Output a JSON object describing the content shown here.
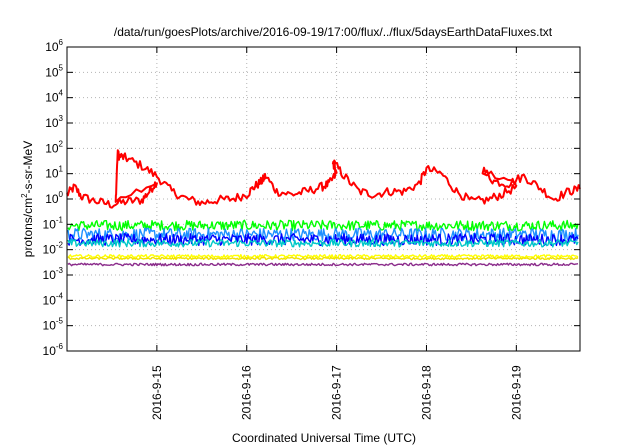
{
  "chart_data": {
    "type": "line",
    "title": "/data/run/goesPlots/archive/2016-09-19/17:00/flux/../flux/5daysEarthDataFluxes.txt",
    "xlabel": "Coordinated Universal Time (UTC)",
    "ylabel": {
      "pre": "protons/cm",
      "sup": "2",
      "post": "-s-sr-MeV"
    },
    "y_scale": "log",
    "ylim_exponents": [
      -6,
      6
    ],
    "y_ticks": [
      {
        "base": "10",
        "exp": "-6"
      },
      {
        "base": "10",
        "exp": "-5"
      },
      {
        "base": "10",
        "exp": "-4"
      },
      {
        "base": "10",
        "exp": "-3"
      },
      {
        "base": "10",
        "exp": "-2"
      },
      {
        "base": "10",
        "exp": "-1"
      },
      {
        "base": "10",
        "exp": "0"
      },
      {
        "base": "10",
        "exp": "1"
      },
      {
        "base": "10",
        "exp": "2"
      },
      {
        "base": "10",
        "exp": "3"
      },
      {
        "base": "10",
        "exp": "4"
      },
      {
        "base": "10",
        "exp": "5"
      },
      {
        "base": "10",
        "exp": "6"
      }
    ],
    "xlim": [
      "2016-09-14 00:00",
      "2016-09-19 17:00"
    ],
    "x_ticks": [
      "2016-9-15",
      "2016-9-16",
      "2016-9-17",
      "2016-9-18",
      "2016-9-19"
    ],
    "grid": true,
    "legend": "none",
    "series": [
      {
        "color": "#ff0000",
        "points": [
          [
            "2016-09-14 00:00",
            1.5
          ],
          [
            "2016-09-14 02:00",
            3.0
          ],
          [
            "2016-09-14 04:00",
            1.2
          ],
          [
            "2016-09-14 08:00",
            0.8
          ],
          [
            "2016-09-14 12:00",
            0.6
          ],
          [
            "2016-09-14 16:00",
            0.8
          ],
          [
            "2016-09-14 20:00",
            0.9
          ],
          [
            "2016-09-14 22:00",
            2.0
          ],
          [
            "2016-09-15 00:00",
            5.0
          ],
          [
            "2016-09-14 13:00",
            0.7
          ],
          [
            "2016-09-14 13:30",
            60
          ],
          [
            "2016-09-14 14:00",
            50
          ],
          [
            "2016-09-14 16:00",
            40
          ],
          [
            "2016-09-14 20:00",
            20
          ],
          [
            "2016-09-15 00:00",
            8
          ],
          [
            "2016-09-15 04:00",
            2.0
          ],
          [
            "2016-09-15 08:00",
            1.0
          ],
          [
            "2016-09-15 12:00",
            0.7
          ],
          [
            "2016-09-15 16:00",
            0.9
          ],
          [
            "2016-09-15 20:00",
            1.0
          ],
          [
            "2016-09-16 00:00",
            1.5
          ],
          [
            "2016-09-16 02:00",
            3.0
          ],
          [
            "2016-09-16 04:00",
            5.0
          ],
          [
            "2016-09-16 05:00",
            8.0
          ],
          [
            "2016-09-16 08:00",
            2.0
          ],
          [
            "2016-09-16 12:00",
            1.5
          ],
          [
            "2016-09-16 16:00",
            2.0
          ],
          [
            "2016-09-16 20:00",
            3.0
          ],
          [
            "2016-09-16 22:00",
            4.0
          ],
          [
            "2016-09-17 00:00",
            10.0
          ],
          [
            "2016-09-16 23:00",
            30.0
          ],
          [
            "2016-09-17 02:00",
            8.0
          ],
          [
            "2016-09-17 06:00",
            2.0
          ],
          [
            "2016-09-17 10:00",
            1.5
          ],
          [
            "2016-09-17 14:00",
            2.0
          ],
          [
            "2016-09-17 18:00",
            2.0
          ],
          [
            "2016-09-17 22:00",
            4.0
          ],
          [
            "2016-09-18 00:00",
            15.0
          ],
          [
            "2016-09-18 04:00",
            10.0
          ],
          [
            "2016-09-18 08:00",
            2.0
          ],
          [
            "2016-09-18 12:00",
            0.8
          ],
          [
            "2016-09-18 16:00",
            0.9
          ],
          [
            "2016-09-18 20:00",
            1.5
          ],
          [
            "2016-09-19 00:00",
            3.0
          ],
          [
            "2016-09-18 15:00",
            15.0
          ],
          [
            "2016-09-18 18:00",
            5.0
          ],
          [
            "2016-09-18 22:00",
            4.0
          ],
          [
            "2016-09-19 02:00",
            8.0
          ],
          [
            "2016-09-19 06:00",
            3.0
          ],
          [
            "2016-09-19 10:00",
            1.0
          ],
          [
            "2016-09-19 14:00",
            2.0
          ],
          [
            "2016-09-19 17:00",
            2.5
          ]
        ]
      },
      {
        "color": "#00ff00",
        "level": 0.09,
        "spread": 1.6
      },
      {
        "color": "#1e90ff",
        "level": 0.04,
        "spread": 1.8
      },
      {
        "color": "#0000ff",
        "level": 0.025,
        "spread": 1.7
      },
      {
        "color": "#00c8c8",
        "level": 0.018,
        "spread": 1.4
      },
      {
        "color": "#ffff00",
        "level": 0.0055,
        "spread": 1.15
      },
      {
        "color": "#f0e000",
        "level": 0.0045,
        "spread": 1.1
      },
      {
        "color": "#8b2c8b",
        "level": 0.0026,
        "spread": 1.12
      }
    ]
  }
}
